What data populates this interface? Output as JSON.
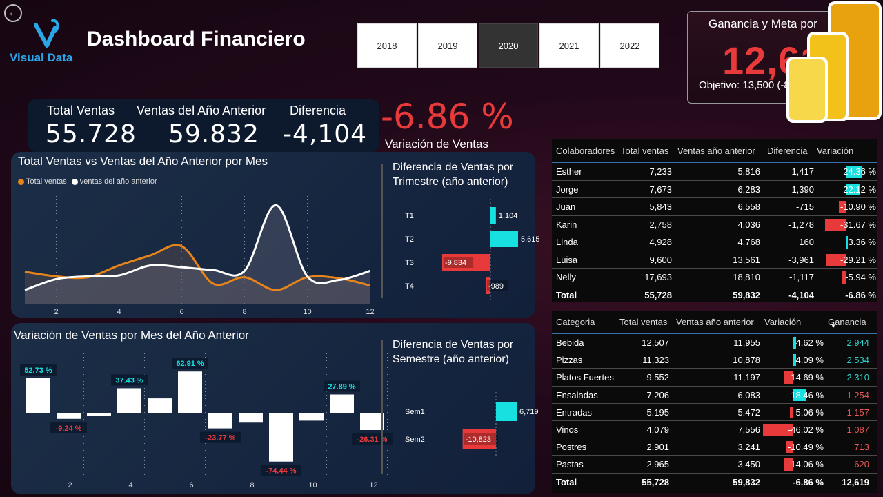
{
  "header": {
    "back_icon": "back-arrow-icon",
    "logo_text": "Visual Data",
    "title": "Dashboard Financiero",
    "years": [
      "2018",
      "2019",
      "2020",
      "2021",
      "2022"
    ],
    "selected_year": "2020"
  },
  "kpi_card": {
    "title": "Ganancia y Meta por",
    "value": "12,61",
    "target": "Objetivo: 13,500 (-8"
  },
  "summary": {
    "total_label": "Total Ventas",
    "total_value": "55.728",
    "prev_label": "Ventas del Año Anterior",
    "prev_value": "59.832",
    "diff_label": "Diferencia",
    "diff_value": "-4,104",
    "variation_value": "-6.86 %",
    "variation_label": "Variación de Ventas"
  },
  "colors": {
    "orange": "#e8841a",
    "white": "#ffffff",
    "cyan": "#19e0e0",
    "red": "#e83a3a",
    "panel": "#1a2b44"
  },
  "chart_line": {
    "title": "Total Ventas vs Ventas del Año Anterior por Mes",
    "legend": [
      "Total ventas",
      "ventas del año anterior"
    ],
    "x_ticks": [
      "2",
      "4",
      "6",
      "8",
      "10",
      "12"
    ]
  },
  "chart_quarter": {
    "title": "Diferencia de Ventas por Trimestre (año anterior)",
    "labels": [
      "T1",
      "T2",
      "T3",
      "T4"
    ],
    "value_labels": [
      "1,104",
      "5,615",
      "-9,834",
      "-989"
    ]
  },
  "chart_variation": {
    "title": "Variación de Ventas por Mes del Año Anterior",
    "data_labels": [
      "52.73 %",
      "-9.24 %",
      "37.43 %",
      "62.91 %",
      "-23.77 %",
      "-74.44 %",
      "27.89 %",
      "-26.31 %"
    ],
    "x_ticks": [
      "2",
      "4",
      "6",
      "8",
      "10",
      "12"
    ]
  },
  "chart_semester": {
    "title": "Diferencia de Ventas por Semestre (año anterior)",
    "labels": [
      "Sem1",
      "Sem2"
    ],
    "value_labels": [
      "6,719",
      "-10,823"
    ]
  },
  "chart_data": [
    {
      "type": "line",
      "x": [
        1,
        2,
        3,
        4,
        5,
        6,
        7,
        8,
        9,
        10,
        11,
        12
      ],
      "series": [
        {
          "name": "Total ventas",
          "values": [
            3500,
            3000,
            2900,
            4200,
            5300,
            6300,
            2200,
            2900,
            1500,
            2900,
            2800,
            2000
          ]
        },
        {
          "name": "ventas del año anterior",
          "values": [
            1500,
            2700,
            3000,
            3100,
            4200,
            4000,
            3700,
            3600,
            10800,
            3000,
            2600,
            3600
          ]
        }
      ]
    },
    {
      "type": "bar",
      "categories": [
        "T1",
        "T2",
        "T3",
        "T4"
      ],
      "values": [
        1104,
        5615,
        -9834,
        -989
      ]
    },
    {
      "type": "bar",
      "categories": [
        "1",
        "2",
        "3",
        "4",
        "5",
        "6",
        "7",
        "8",
        "9",
        "10",
        "11",
        "12"
      ],
      "values": [
        52.73,
        -9.24,
        -3,
        37.43,
        22,
        62.91,
        -23.77,
        -15,
        -74.44,
        -12,
        27.89,
        -26.31
      ]
    },
    {
      "type": "bar",
      "categories": [
        "Sem1",
        "Sem2"
      ],
      "values": [
        6719,
        -10823
      ]
    }
  ],
  "table_collab": {
    "headers": [
      "Colaboradores",
      "Total ventas",
      "Ventas año anterior",
      "Diferencia",
      "Variación"
    ],
    "rows": [
      {
        "name": "Esther",
        "total": "7,233",
        "prev": "5,816",
        "diff": "1,417",
        "var": "24.36 %",
        "var_num": 24.36
      },
      {
        "name": "Jorge",
        "total": "7,673",
        "prev": "6,283",
        "diff": "1,390",
        "var": "22.12 %",
        "var_num": 22.12
      },
      {
        "name": "Juan",
        "total": "5,843",
        "prev": "6,558",
        "diff": "-715",
        "var": "-10.90 %",
        "var_num": -10.9
      },
      {
        "name": "Karin",
        "total": "2,758",
        "prev": "4,036",
        "diff": "-1,278",
        "var": "-31.67 %",
        "var_num": -31.67
      },
      {
        "name": "Linda",
        "total": "4,928",
        "prev": "4,768",
        "diff": "160",
        "var": "3.36 %",
        "var_num": 3.36
      },
      {
        "name": "Luisa",
        "total": "9,600",
        "prev": "13,561",
        "diff": "-3,961",
        "var": "-29.21 %",
        "var_num": -29.21
      },
      {
        "name": "Nelly",
        "total": "17,693",
        "prev": "18,810",
        "diff": "-1,117",
        "var": "-5.94 %",
        "var_num": -5.94
      }
    ],
    "total": {
      "name": "Total",
      "total": "55,728",
      "prev": "59,832",
      "diff": "-4,104",
      "var": "-6.86 %"
    }
  },
  "table_category": {
    "headers": [
      "Categoria",
      "Total ventas",
      "Ventas año anterior",
      "Variación",
      "Ganancia"
    ],
    "sort_icon": "sort-desc-icon",
    "rows": [
      {
        "name": "Bebida",
        "total": "12,507",
        "prev": "11,955",
        "var": "4.62 %",
        "var_num": 4.62,
        "gain": "2,944",
        "pos": true
      },
      {
        "name": "Pizzas",
        "total": "11,323",
        "prev": "10,878",
        "var": "4.09 %",
        "var_num": 4.09,
        "gain": "2,534",
        "pos": true
      },
      {
        "name": "Platos Fuertes",
        "total": "9,552",
        "prev": "11,197",
        "var": "-14.69 %",
        "var_num": -14.69,
        "gain": "2,310",
        "pos": true
      },
      {
        "name": "Ensaladas",
        "total": "7,206",
        "prev": "6,083",
        "var": "18.46 %",
        "var_num": 18.46,
        "gain": "1,254",
        "pos": false
      },
      {
        "name": "Entradas",
        "total": "5,195",
        "prev": "5,472",
        "var": "-5.06 %",
        "var_num": -5.06,
        "gain": "1,157",
        "pos": false
      },
      {
        "name": "Vinos",
        "total": "4,079",
        "prev": "7,556",
        "var": "-46.02 %",
        "var_num": -46.02,
        "gain": "1,087",
        "pos": false
      },
      {
        "name": "Postres",
        "total": "2,901",
        "prev": "3,241",
        "var": "-10.49 %",
        "var_num": -10.49,
        "gain": "713",
        "pos": false
      },
      {
        "name": "Pastas",
        "total": "2,965",
        "prev": "3,450",
        "var": "-14.06 %",
        "var_num": -14.06,
        "gain": "620",
        "pos": false
      }
    ],
    "total": {
      "name": "Total",
      "total": "55,728",
      "prev": "59,832",
      "var": "-6.86 %",
      "gain": "12,619"
    }
  }
}
